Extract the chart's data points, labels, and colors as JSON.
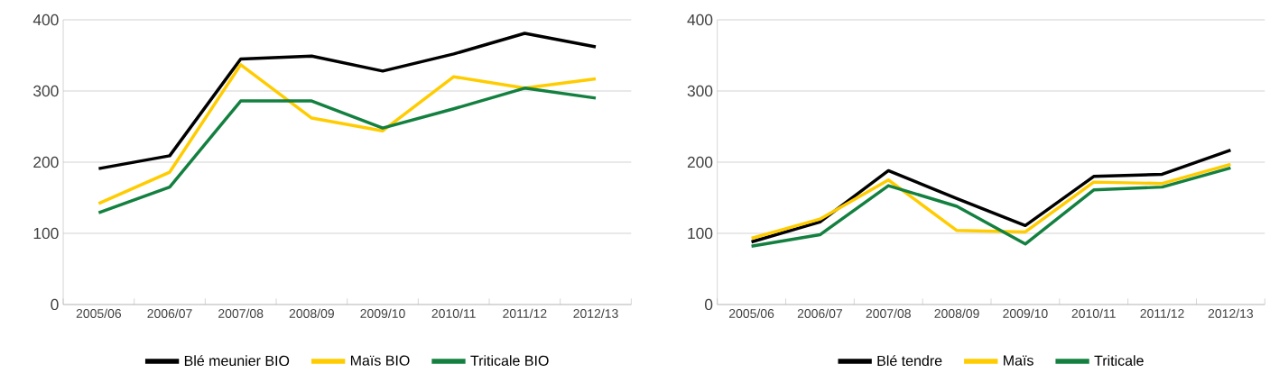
{
  "chart_data": [
    {
      "type": "line",
      "categories": [
        "2005/06",
        "2006/07",
        "2007/08",
        "2008/09",
        "2009/10",
        "2010/11",
        "2011/12",
        "2012/13"
      ],
      "ylim": [
        0,
        400
      ],
      "yticks": [
        0,
        100,
        200,
        300,
        400
      ],
      "grid": "y",
      "legend": "bottom",
      "series": [
        {
          "name": "Blé meunier BIO",
          "color": "#000000",
          "values": [
            191,
            209,
            345,
            349,
            328,
            352,
            381,
            362
          ]
        },
        {
          "name": "Maïs BIO",
          "color": "#ffcc00",
          "values": [
            142,
            186,
            337,
            262,
            244,
            320,
            304,
            317
          ]
        },
        {
          "name": "Triticale BIO",
          "color": "#138040",
          "values": [
            129,
            165,
            286,
            286,
            248,
            275,
            304,
            290
          ]
        }
      ]
    },
    {
      "type": "line",
      "categories": [
        "2005/06",
        "2006/07",
        "2007/08",
        "2008/09",
        "2009/10",
        "2010/11",
        "2011/12",
        "2012/13"
      ],
      "ylim": [
        0,
        400
      ],
      "yticks": [
        0,
        100,
        200,
        300,
        400
      ],
      "grid": "y",
      "legend": "bottom",
      "series": [
        {
          "name": "Blé tendre",
          "color": "#000000",
          "values": [
            88,
            116,
            188,
            149,
            111,
            180,
            183,
            217
          ]
        },
        {
          "name": "Maïs",
          "color": "#ffcc00",
          "values": [
            93,
            120,
            175,
            104,
            102,
            172,
            170,
            197
          ]
        },
        {
          "name": "Triticale",
          "color": "#138040",
          "values": [
            82,
            98,
            167,
            138,
            85,
            161,
            165,
            192
          ]
        }
      ]
    }
  ]
}
